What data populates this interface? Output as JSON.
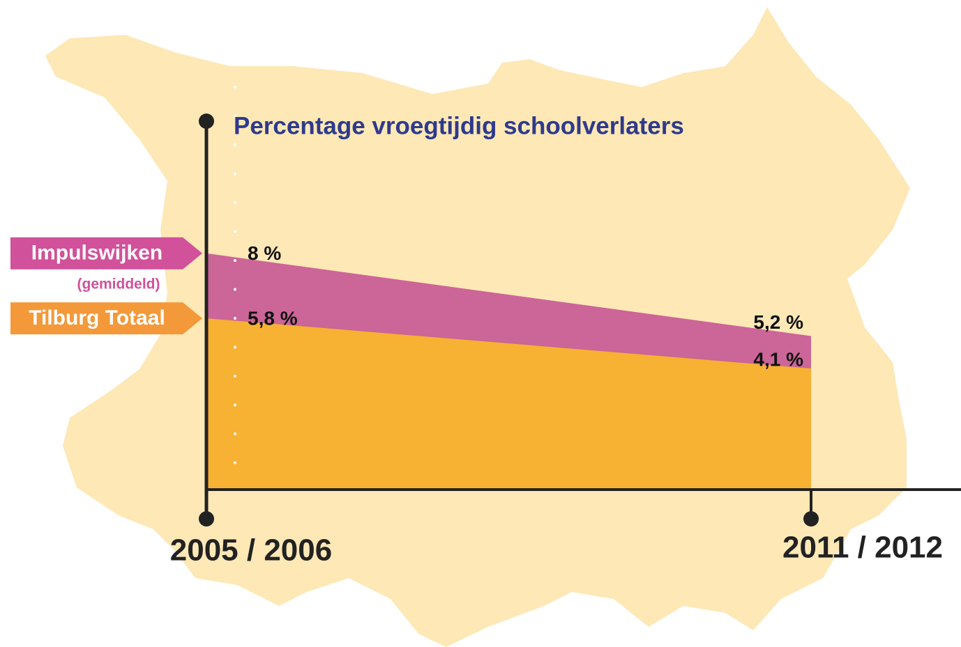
{
  "chart_data": {
    "type": "area",
    "title": "Percentage vroegtijdig schoolverlaters",
    "categories": [
      "2005 / 2006",
      "2011 / 2012"
    ],
    "series": [
      {
        "name": "Impulswijken",
        "sub": "(gemiddeld)",
        "color": "#cc6598",
        "legend_color": "#d1519a",
        "values": [
          8,
          5.2
        ],
        "value_labels": [
          "8 %",
          "5,2 %"
        ]
      },
      {
        "name": "Tilburg Totaal",
        "color": "#f7b133",
        "legend_color": "#f3993a",
        "values": [
          5.8,
          4.1
        ],
        "value_labels": [
          "5,8 %",
          "4,1 %"
        ]
      }
    ],
    "ylim": [
      0,
      12.5
    ]
  }
}
